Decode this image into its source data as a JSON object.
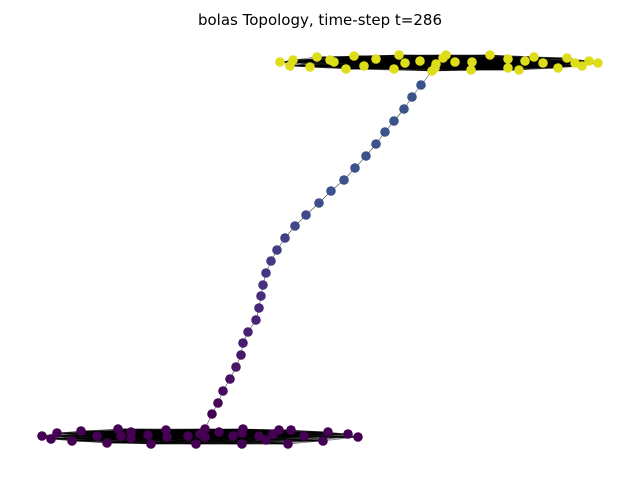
{
  "chart_data": {
    "type": "graph",
    "title": "bolas Topology, time-step t=286",
    "graph_name": "bolas",
    "time_step": 286,
    "axes_visible": false,
    "edge_color": "#000000",
    "node_colormap": "viridis",
    "clusters": [
      {
        "name": "bottom-cluster",
        "node_count": 36,
        "color": "#440154"
      },
      {
        "name": "top-cluster",
        "node_count": 36,
        "color": "#dddd1a"
      }
    ],
    "path": {
      "node_count": 31,
      "colors": [
        "#440154",
        "#472d7b",
        "#3b528b"
      ]
    }
  }
}
